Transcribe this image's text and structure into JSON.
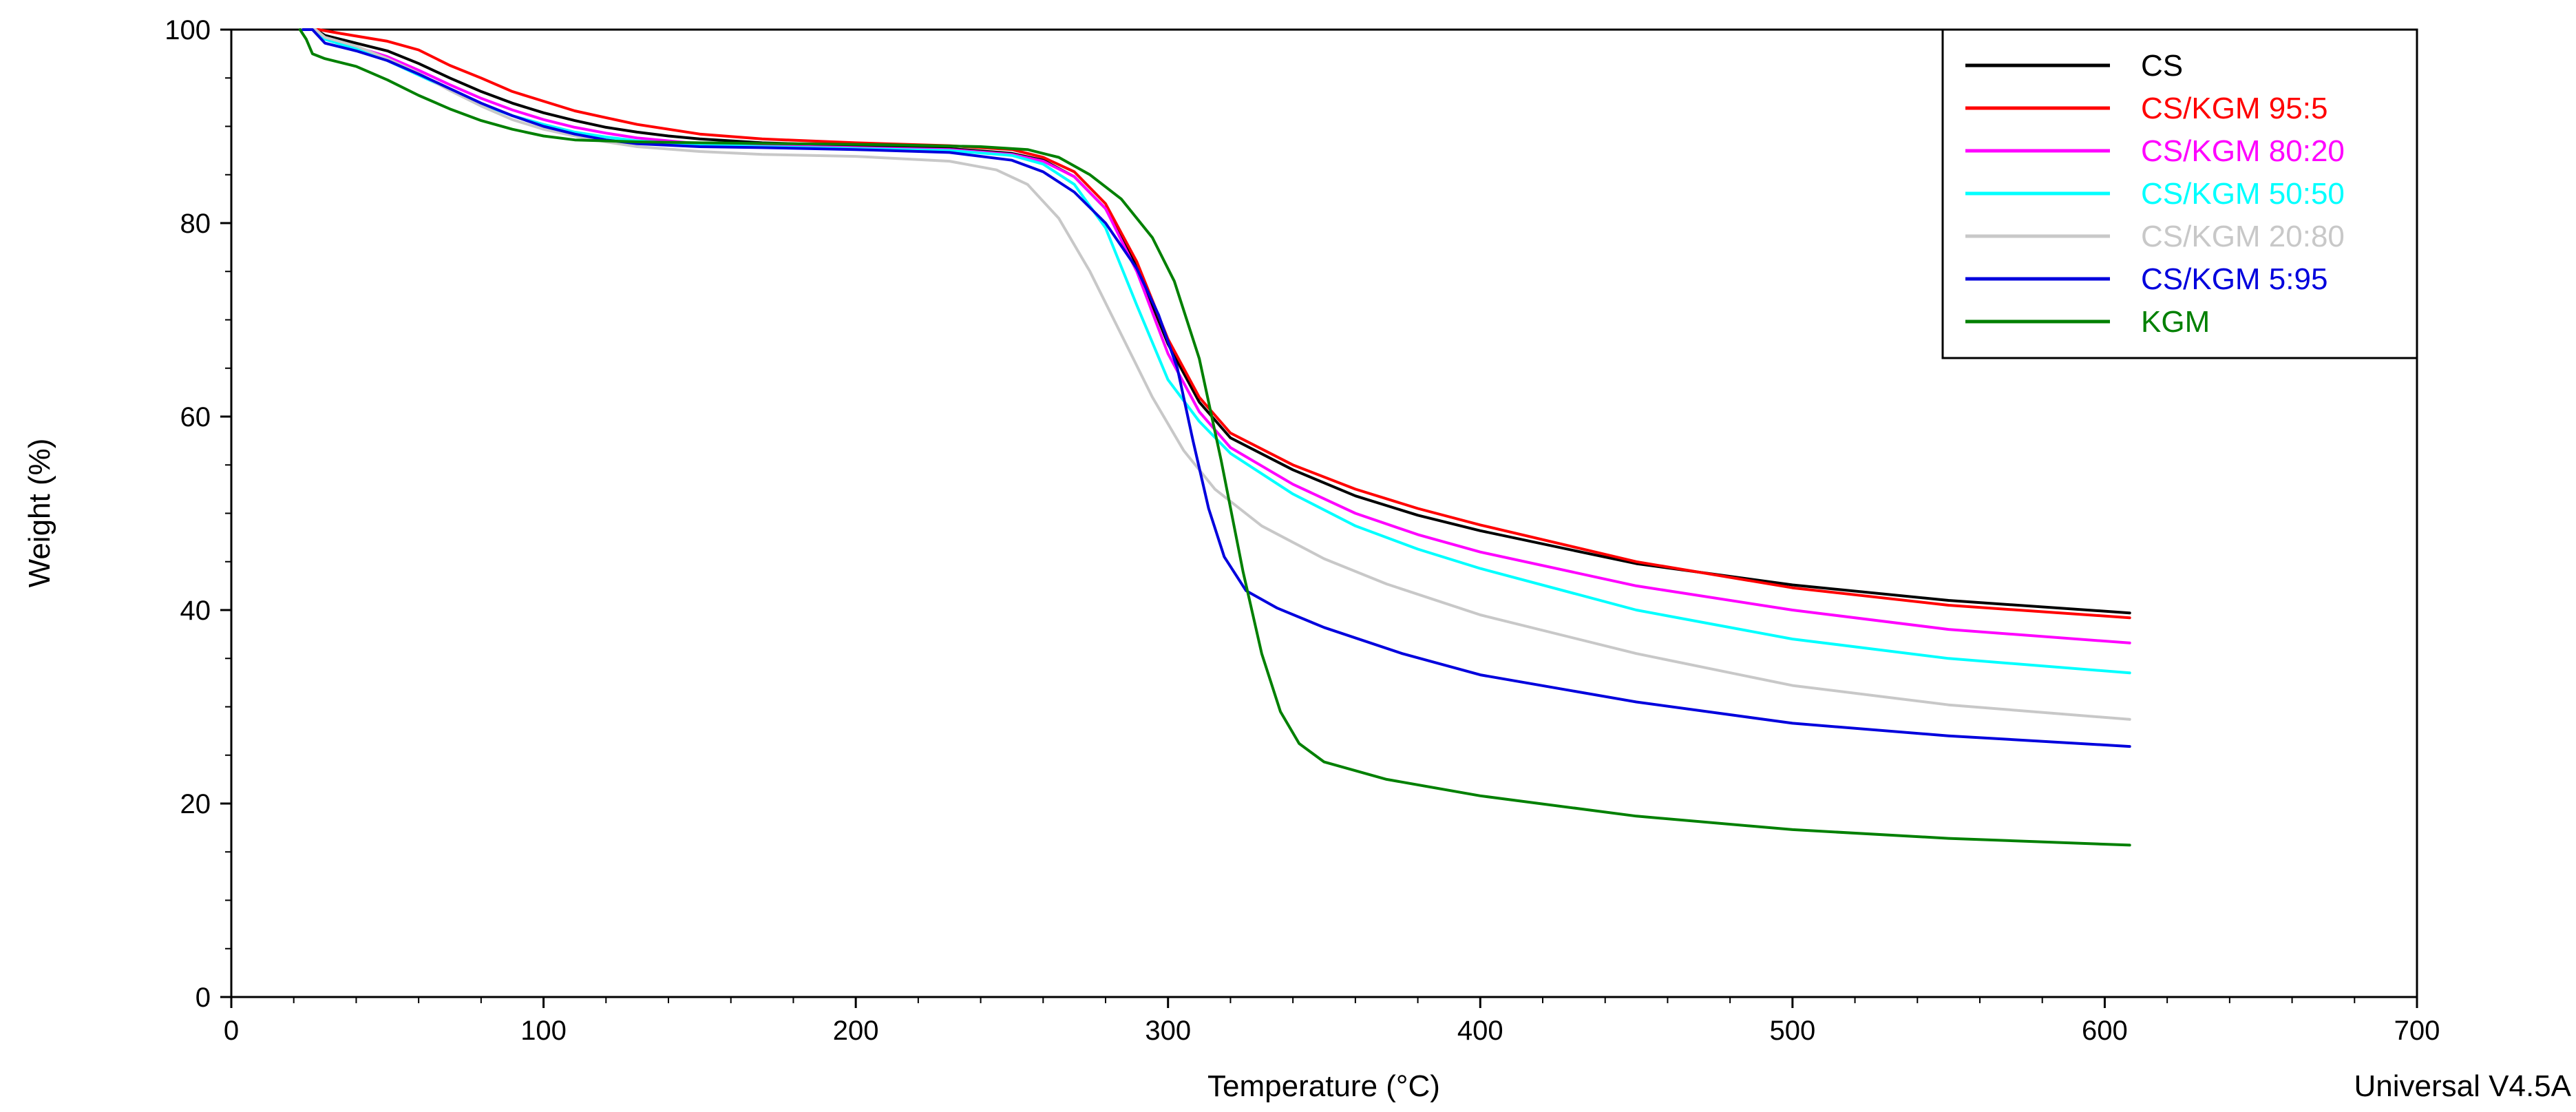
{
  "chart_data": {
    "type": "line",
    "title": "",
    "xlabel": "Temperature (°C)",
    "ylabel": "Weight (%)",
    "xlim": [
      0,
      700
    ],
    "ylim": [
      0,
      100
    ],
    "xticks": [
      0,
      100,
      200,
      300,
      400,
      500,
      600,
      700
    ],
    "yticks": [
      0,
      20,
      40,
      60,
      80,
      100
    ],
    "grid": false,
    "legend_position": "top-right",
    "footer": "Universal V4.5A",
    "series": [
      {
        "name": "CS",
        "color": "#000000",
        "points": [
          [
            23,
            100
          ],
          [
            27,
            100
          ],
          [
            30,
            99.4
          ],
          [
            40,
            98.6
          ],
          [
            50,
            97.8
          ],
          [
            60,
            96.5
          ],
          [
            70,
            95.0
          ],
          [
            80,
            93.6
          ],
          [
            90,
            92.4
          ],
          [
            100,
            91.4
          ],
          [
            110,
            90.6
          ],
          [
            120,
            89.9
          ],
          [
            130,
            89.4
          ],
          [
            140,
            89.0
          ],
          [
            150,
            88.7
          ],
          [
            170,
            88.3
          ],
          [
            200,
            88.0
          ],
          [
            230,
            87.7
          ],
          [
            250,
            87.2
          ],
          [
            260,
            86.5
          ],
          [
            270,
            84.8
          ],
          [
            280,
            81.5
          ],
          [
            290,
            75.5
          ],
          [
            300,
            67.5
          ],
          [
            310,
            61.5
          ],
          [
            320,
            57.8
          ],
          [
            340,
            54.5
          ],
          [
            360,
            51.8
          ],
          [
            380,
            49.8
          ],
          [
            400,
            48.2
          ],
          [
            450,
            44.8
          ],
          [
            500,
            42.6
          ],
          [
            550,
            41.0
          ],
          [
            608,
            39.7
          ]
        ]
      },
      {
        "name": "CS/KGM 95:5",
        "color": "#ff0000",
        "points": [
          [
            23,
            100
          ],
          [
            28,
            100
          ],
          [
            35,
            99.6
          ],
          [
            50,
            98.8
          ],
          [
            60,
            97.9
          ],
          [
            70,
            96.3
          ],
          [
            80,
            95.0
          ],
          [
            90,
            93.6
          ],
          [
            100,
            92.6
          ],
          [
            110,
            91.6
          ],
          [
            120,
            90.9
          ],
          [
            130,
            90.2
          ],
          [
            140,
            89.7
          ],
          [
            150,
            89.2
          ],
          [
            170,
            88.7
          ],
          [
            200,
            88.3
          ],
          [
            230,
            88.0
          ],
          [
            250,
            87.6
          ],
          [
            260,
            86.8
          ],
          [
            270,
            85.3
          ],
          [
            280,
            82.0
          ],
          [
            290,
            76.0
          ],
          [
            300,
            68.0
          ],
          [
            310,
            62.0
          ],
          [
            320,
            58.3
          ],
          [
            340,
            55.0
          ],
          [
            360,
            52.5
          ],
          [
            380,
            50.5
          ],
          [
            400,
            48.8
          ],
          [
            450,
            45.0
          ],
          [
            500,
            42.3
          ],
          [
            550,
            40.5
          ],
          [
            608,
            39.2
          ]
        ]
      },
      {
        "name": "CS/KGM 80:20",
        "color": "#ff00ff",
        "points": [
          [
            23,
            100
          ],
          [
            27,
            100
          ],
          [
            30,
            99.0
          ],
          [
            40,
            98.2
          ],
          [
            50,
            97.2
          ],
          [
            60,
            95.8
          ],
          [
            70,
            94.3
          ],
          [
            80,
            92.9
          ],
          [
            90,
            91.7
          ],
          [
            100,
            90.7
          ],
          [
            110,
            89.9
          ],
          [
            120,
            89.3
          ],
          [
            130,
            88.8
          ],
          [
            150,
            88.2
          ],
          [
            170,
            88.0
          ],
          [
            200,
            87.8
          ],
          [
            230,
            87.6
          ],
          [
            250,
            87.1
          ],
          [
            260,
            86.4
          ],
          [
            270,
            84.8
          ],
          [
            280,
            81.5
          ],
          [
            290,
            75.0
          ],
          [
            300,
            66.5
          ],
          [
            310,
            60.5
          ],
          [
            320,
            56.8
          ],
          [
            340,
            53.0
          ],
          [
            360,
            50.0
          ],
          [
            380,
            47.8
          ],
          [
            400,
            46.0
          ],
          [
            450,
            42.5
          ],
          [
            500,
            40.0
          ],
          [
            550,
            38.0
          ],
          [
            608,
            36.6
          ]
        ]
      },
      {
        "name": "CS/KGM 50:50",
        "color": "#00ffff",
        "points": [
          [
            23,
            100
          ],
          [
            27,
            100
          ],
          [
            30,
            99.0
          ],
          [
            40,
            98.0
          ],
          [
            50,
            96.8
          ],
          [
            60,
            95.3
          ],
          [
            70,
            93.8
          ],
          [
            80,
            92.3
          ],
          [
            90,
            91.1
          ],
          [
            100,
            90.2
          ],
          [
            110,
            89.4
          ],
          [
            120,
            88.9
          ],
          [
            130,
            88.5
          ],
          [
            150,
            88.1
          ],
          [
            170,
            87.9
          ],
          [
            200,
            87.7
          ],
          [
            230,
            87.5
          ],
          [
            250,
            87.0
          ],
          [
            260,
            86.1
          ],
          [
            270,
            84.0
          ],
          [
            280,
            79.5
          ],
          [
            290,
            71.5
          ],
          [
            300,
            63.8
          ],
          [
            310,
            59.5
          ],
          [
            320,
            56.2
          ],
          [
            340,
            52.0
          ],
          [
            360,
            48.7
          ],
          [
            380,
            46.3
          ],
          [
            400,
            44.3
          ],
          [
            450,
            40.0
          ],
          [
            500,
            37.0
          ],
          [
            550,
            35.0
          ],
          [
            608,
            33.5
          ]
        ]
      },
      {
        "name": "CS/KGM 20:80",
        "color": "#c8c8c8",
        "points": [
          [
            23,
            100
          ],
          [
            27,
            100
          ],
          [
            30,
            99.2
          ],
          [
            40,
            98.3
          ],
          [
            50,
            97.0
          ],
          [
            60,
            95.5
          ],
          [
            70,
            93.7
          ],
          [
            80,
            92.1
          ],
          [
            90,
            90.7
          ],
          [
            100,
            89.7
          ],
          [
            110,
            89.0
          ],
          [
            120,
            88.4
          ],
          [
            130,
            87.9
          ],
          [
            150,
            87.4
          ],
          [
            170,
            87.1
          ],
          [
            200,
            86.9
          ],
          [
            230,
            86.4
          ],
          [
            245,
            85.5
          ],
          [
            255,
            84.0
          ],
          [
            265,
            80.5
          ],
          [
            275,
            75.0
          ],
          [
            285,
            68.5
          ],
          [
            295,
            62.0
          ],
          [
            305,
            56.5
          ],
          [
            315,
            52.5
          ],
          [
            330,
            48.7
          ],
          [
            350,
            45.3
          ],
          [
            370,
            42.7
          ],
          [
            400,
            39.5
          ],
          [
            450,
            35.5
          ],
          [
            500,
            32.2
          ],
          [
            550,
            30.2
          ],
          [
            608,
            28.7
          ]
        ]
      },
      {
        "name": "CS/KGM 5:95",
        "color": "#0000dd",
        "points": [
          [
            23,
            100
          ],
          [
            26,
            100
          ],
          [
            30,
            98.6
          ],
          [
            40,
            97.8
          ],
          [
            50,
            96.8
          ],
          [
            60,
            95.4
          ],
          [
            70,
            93.9
          ],
          [
            80,
            92.4
          ],
          [
            90,
            91.1
          ],
          [
            100,
            90.0
          ],
          [
            110,
            89.2
          ],
          [
            120,
            88.6
          ],
          [
            130,
            88.2
          ],
          [
            150,
            87.9
          ],
          [
            170,
            87.8
          ],
          [
            200,
            87.6
          ],
          [
            230,
            87.3
          ],
          [
            250,
            86.5
          ],
          [
            260,
            85.3
          ],
          [
            270,
            83.2
          ],
          [
            280,
            80.0
          ],
          [
            290,
            75.3
          ],
          [
            297,
            70.5
          ],
          [
            303,
            65.0
          ],
          [
            308,
            57.5
          ],
          [
            313,
            50.5
          ],
          [
            318,
            45.5
          ],
          [
            325,
            42.0
          ],
          [
            335,
            40.2
          ],
          [
            350,
            38.2
          ],
          [
            375,
            35.5
          ],
          [
            400,
            33.3
          ],
          [
            450,
            30.5
          ],
          [
            500,
            28.3
          ],
          [
            550,
            27.0
          ],
          [
            608,
            25.9
          ]
        ]
      },
      {
        "name": "KGM",
        "color": "#008000",
        "points": [
          [
            22,
            100
          ],
          [
            24,
            99.0
          ],
          [
            26,
            97.5
          ],
          [
            30,
            97.0
          ],
          [
            40,
            96.2
          ],
          [
            50,
            94.8
          ],
          [
            60,
            93.2
          ],
          [
            70,
            91.8
          ],
          [
            80,
            90.6
          ],
          [
            90,
            89.7
          ],
          [
            100,
            89.0
          ],
          [
            110,
            88.6
          ],
          [
            130,
            88.4
          ],
          [
            150,
            88.3
          ],
          [
            180,
            88.2
          ],
          [
            210,
            88.1
          ],
          [
            240,
            87.9
          ],
          [
            255,
            87.6
          ],
          [
            265,
            86.8
          ],
          [
            275,
            85.0
          ],
          [
            285,
            82.5
          ],
          [
            295,
            78.5
          ],
          [
            302,
            74.0
          ],
          [
            310,
            66.0
          ],
          [
            317,
            55.5
          ],
          [
            324,
            44.0
          ],
          [
            330,
            35.5
          ],
          [
            336,
            29.5
          ],
          [
            342,
            26.2
          ],
          [
            350,
            24.3
          ],
          [
            370,
            22.5
          ],
          [
            400,
            20.8
          ],
          [
            450,
            18.7
          ],
          [
            500,
            17.3
          ],
          [
            550,
            16.4
          ],
          [
            608,
            15.7
          ]
        ]
      }
    ]
  }
}
